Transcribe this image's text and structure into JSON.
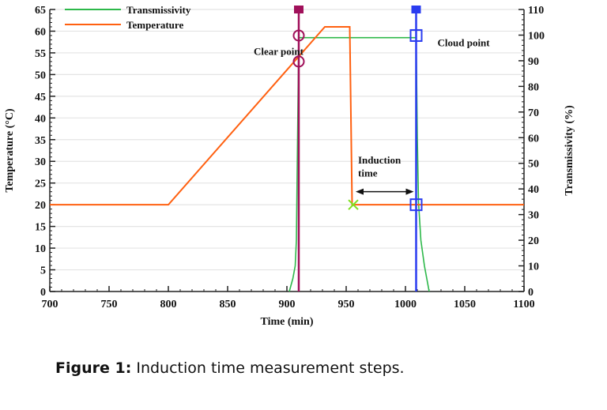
{
  "chart_data": {
    "type": "line",
    "xlabel": "Time (min)",
    "ylabel": "Temperature (°C)",
    "y2label": "Transmissivity (%)",
    "xlim": [
      700,
      1100
    ],
    "ylim": [
      0,
      65
    ],
    "y2lim": [
      0,
      110
    ],
    "xticks": [
      700,
      750,
      800,
      850,
      900,
      950,
      1000,
      1050,
      1100
    ],
    "yticks": [
      0,
      5,
      10,
      15,
      20,
      25,
      30,
      35,
      40,
      45,
      50,
      55,
      60,
      65
    ],
    "y2ticks": [
      0,
      10,
      20,
      30,
      40,
      50,
      60,
      70,
      80,
      90,
      100,
      110
    ],
    "grid": "horizontal",
    "legend_position": "top-left",
    "series": [
      {
        "name": "Transmissivity",
        "axis": "right",
        "color": "#2db84a",
        "x": [
          902,
          905,
          907,
          908,
          909,
          910,
          1009,
          1010,
          1011,
          1013,
          1016,
          1020
        ],
        "y": [
          0,
          5,
          10,
          20,
          60,
          99,
          99,
          60,
          35,
          20,
          10,
          0
        ]
      },
      {
        "name": "Temperature",
        "axis": "left",
        "color": "#ff6010",
        "x": [
          700,
          800,
          932,
          953,
          955,
          1100
        ],
        "y": [
          20,
          20,
          61,
          61,
          20,
          20
        ]
      }
    ],
    "vertical_lines": [
      {
        "x": 910,
        "color": "#a0105a"
      },
      {
        "x": 1009,
        "color": "#2a3cf0"
      }
    ],
    "markers": [
      {
        "x": 910,
        "y": 65,
        "shape": "filled-square",
        "color": "#a0105a"
      },
      {
        "x": 910,
        "y": 59,
        "shape": "circle",
        "color": "#a0105a"
      },
      {
        "x": 910,
        "y": 53,
        "shape": "circle",
        "color": "#a0105a"
      },
      {
        "x": 1009,
        "y": 65,
        "shape": "filled-square",
        "color": "#2a3cf0"
      },
      {
        "x": 1009,
        "y": 59,
        "shape": "square",
        "color": "#2a3cf0"
      },
      {
        "x": 1009,
        "y": 20,
        "shape": "square",
        "color": "#2a3cf0"
      },
      {
        "x": 956,
        "y": 20,
        "shape": "cross",
        "color": "#7ee020"
      }
    ],
    "annotations": [
      {
        "text": "Clear point",
        "x": 872,
        "y": 54.5
      },
      {
        "text": "Cloud point",
        "x": 1027,
        "y": 56.5
      },
      {
        "text": "Induction",
        "x": 960,
        "y": 29.5
      },
      {
        "text": "time",
        "x": 960,
        "y": 26.5
      }
    ],
    "arrow": {
      "x1": 958,
      "x2": 1007,
      "y": 23
    }
  },
  "caption": {
    "label": "Figure 1:",
    "text": " Induction time measurement steps."
  }
}
